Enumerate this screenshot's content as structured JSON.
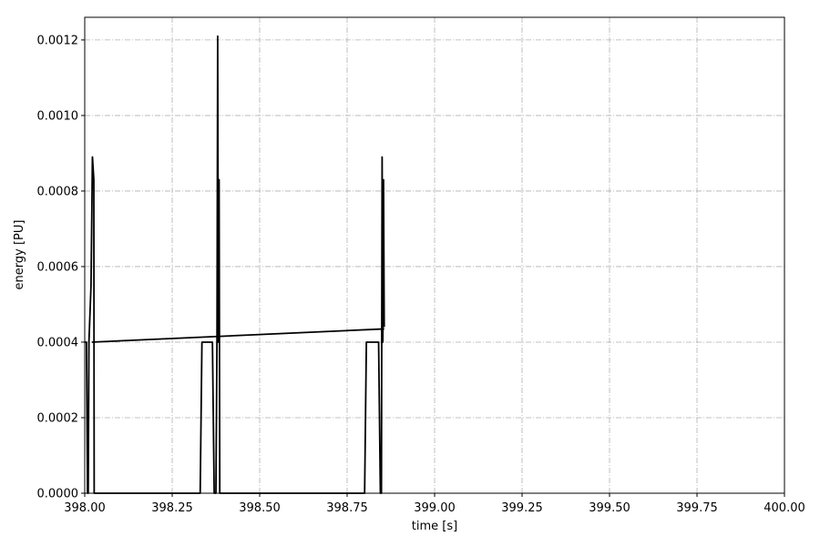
{
  "chart_data": {
    "type": "line",
    "xlabel": "time [s]",
    "ylabel": "energy [PU]",
    "xlim": [
      398.0,
      400.0
    ],
    "ylim": [
      0.0,
      0.00126
    ],
    "xticks": [
      398.0,
      398.25,
      398.5,
      398.75,
      399.0,
      399.25,
      399.5,
      399.75,
      400.0
    ],
    "xtick_labels": [
      "398.00",
      "398.25",
      "398.50",
      "398.75",
      "399.00",
      "399.25",
      "399.50",
      "399.75",
      "400.00"
    ],
    "yticks": [
      0.0,
      0.0002,
      0.0004,
      0.0006,
      0.0008,
      0.001,
      0.0012
    ],
    "ytick_labels": [
      "0.0000",
      "0.0002",
      "0.0004",
      "0.0006",
      "0.0008",
      "0.0010",
      "0.0012"
    ],
    "grid": true,
    "series_color": "#000000",
    "grid_color": "#b0b0b0",
    "series": [
      {
        "x": [
          398.0,
          398.005,
          398.008,
          398.01,
          398.012,
          398.018,
          398.022,
          398.024,
          398.026,
          398.027,
          398.03,
          398.24,
          398.325,
          398.33,
          398.335,
          398.34,
          398.35,
          398.36,
          398.365,
          398.37,
          398.375,
          398.378,
          398.38,
          398.382,
          398.384,
          398.386,
          398.39,
          398.5,
          398.7,
          398.8,
          398.805,
          398.81,
          398.82,
          398.83,
          398.84,
          398.845,
          398.848,
          398.85,
          398.852,
          398.854,
          398.856
        ],
        "y": [
          0.0004,
          0.0004,
          0.0,
          0.0,
          0.0004,
          0.00055,
          0.00089,
          0.00086,
          0.00083,
          0.0,
          0.0,
          0.0,
          0.0,
          0.0,
          0.0004,
          0.0004,
          0.0004,
          0.0004,
          0.0004,
          0.0,
          0.0,
          0.0004,
          0.00121,
          0.0004,
          0.00083,
          0.0,
          0.0,
          0.0,
          0.0,
          0.0,
          0.0004,
          0.0004,
          0.0004,
          0.0004,
          0.0004,
          0.0,
          0.0,
          0.00089,
          0.0004,
          0.00083,
          0.00044
        ]
      },
      {
        "x": [
          398.02,
          398.856
        ],
        "y": [
          0.0004,
          0.000435
        ]
      }
    ]
  }
}
